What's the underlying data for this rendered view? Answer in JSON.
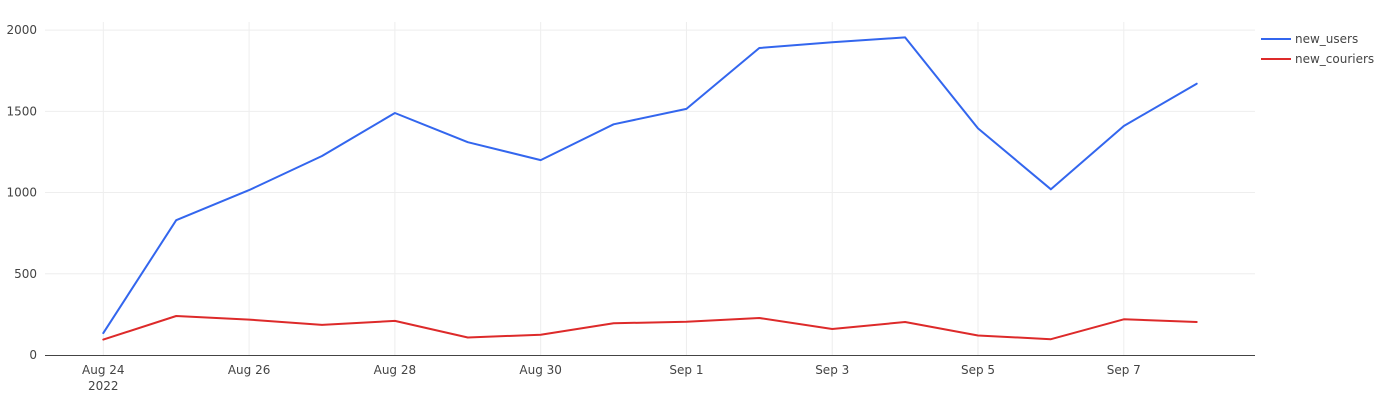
{
  "chart_data": {
    "type": "line",
    "title": "",
    "xlabel": "",
    "ylabel": "",
    "x_start": "2022-08-24",
    "x_tick_labels": [
      "Aug 24",
      "Aug 26",
      "Aug 28",
      "Aug 30",
      "Sep 1",
      "Sep 3",
      "Sep 5",
      "Sep 7"
    ],
    "x_tick_day_offsets": [
      0,
      2,
      4,
      6,
      8,
      10,
      12,
      14
    ],
    "x_year_label": "2022",
    "x_range_day_offsets": [
      -0.8,
      15.8
    ],
    "y_ticks": [
      0,
      500,
      1000,
      1500,
      2000
    ],
    "ylim": [
      0,
      2050
    ],
    "grid": true,
    "legend_position": "top-right",
    "series": [
      {
        "name": "new_users",
        "color": "#3366ee",
        "values": [
          135,
          830,
          1015,
          1225,
          1490,
          1310,
          1200,
          1420,
          1515,
          1890,
          1925,
          1955,
          1395,
          1020,
          1410,
          1670
        ]
      },
      {
        "name": "new_couriers",
        "color": "#dd2a2a",
        "values": [
          95,
          240,
          218,
          185,
          210,
          108,
          125,
          195,
          205,
          228,
          160,
          203,
          120,
          97,
          220,
          203
        ]
      }
    ]
  }
}
